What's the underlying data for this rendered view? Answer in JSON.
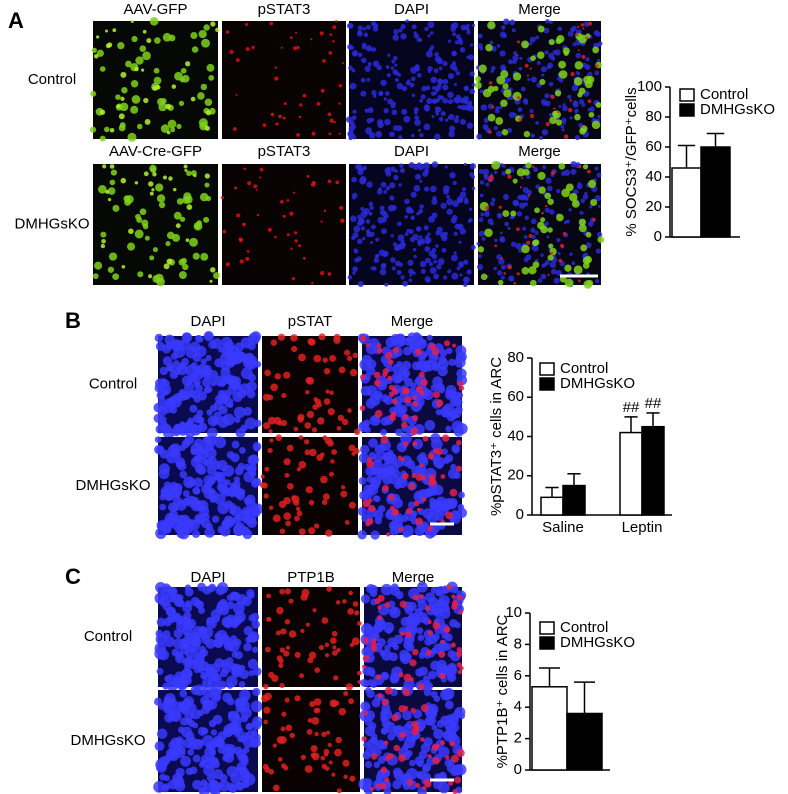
{
  "panels": [
    {
      "label": "A",
      "header_rows": [
        [
          "AAV-GFP",
          "pSTAT3",
          "DAPI",
          "Merge"
        ],
        [
          "AAV-Cre-GFP",
          "pSTAT3",
          "DAPI",
          "Merge"
        ]
      ],
      "rows": [
        "Control",
        "DMHGsKO"
      ]
    },
    {
      "label": "B",
      "header_rows": [
        [
          "DAPI",
          "pSTAT",
          "Merge"
        ]
      ],
      "rows": [
        "Control",
        "DMHGsKO"
      ]
    },
    {
      "label": "C",
      "header_rows": [
        [
          "DAPI",
          "PTP1B",
          "Merge"
        ]
      ],
      "rows": [
        "Control",
        "DMHGsKO"
      ]
    }
  ],
  "chart_data": [
    {
      "type": "bar",
      "y_label": "% SOCS3⁺/GFP⁺cells",
      "categories": [
        null
      ],
      "series": [
        {
          "name": "Control",
          "color": "#ffffff",
          "values": [
            46
          ],
          "errors": [
            15
          ]
        },
        {
          "name": "DMHGsKO",
          "color": "#000000",
          "values": [
            60
          ],
          "errors": [
            9
          ]
        }
      ],
      "ylim": [
        0,
        100
      ],
      "yticks": [
        0,
        20,
        40,
        60,
        80,
        100
      ]
    },
    {
      "type": "bar",
      "y_label": "%pSTAT3⁺ cells in ARC",
      "categories": [
        "Saline",
        "Leptin"
      ],
      "series": [
        {
          "name": "Control",
          "color": "#ffffff",
          "values": [
            9,
            42
          ],
          "errors": [
            5,
            8
          ],
          "annotations": [
            null,
            "##"
          ]
        },
        {
          "name": "DMHGsKO",
          "color": "#000000",
          "values": [
            15,
            45
          ],
          "errors": [
            6,
            7
          ],
          "annotations": [
            null,
            "##"
          ]
        }
      ],
      "ylim": [
        0,
        80
      ],
      "yticks": [
        0,
        20,
        40,
        60,
        80
      ]
    },
    {
      "type": "bar",
      "y_label": "%PTP1B⁺ cells in ARC",
      "categories": [
        null
      ],
      "series": [
        {
          "name": "Control",
          "color": "#ffffff",
          "values": [
            5.3
          ],
          "errors": [
            1.2
          ]
        },
        {
          "name": "DMHGsKO",
          "color": "#000000",
          "values": [
            3.6
          ],
          "errors": [
            2.0
          ]
        }
      ],
      "ylim": [
        0,
        10
      ],
      "yticks": [
        0,
        2,
        4,
        6,
        8,
        10
      ]
    }
  ]
}
